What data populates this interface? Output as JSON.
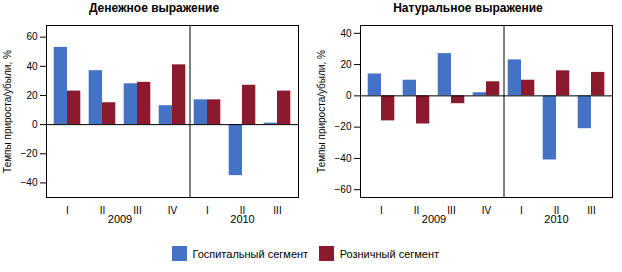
{
  "chart_data": [
    {
      "type": "bar",
      "title": "Денежное выражение",
      "ylabel": "Темпы прироста/убыли, %",
      "categories": [
        "I",
        "II",
        "III",
        "IV",
        "I",
        "II",
        "III"
      ],
      "series": [
        {
          "name": "Госпитальный сегмент",
          "color": "#4472C4",
          "values": [
            53,
            37,
            28,
            13,
            17,
            -35,
            1
          ]
        },
        {
          "name": "Розничный сегмент",
          "color": "#8B1A2E",
          "values": [
            23,
            15,
            29,
            41,
            17,
            27,
            23
          ]
        }
      ],
      "annotations": [
        {
          "text": "2009",
          "categories": 4
        },
        {
          "text": "2010",
          "categories": 3
        }
      ],
      "ylim": [
        -50,
        68
      ],
      "yticks": [
        -40,
        -20,
        0,
        20,
        40,
        60
      ],
      "grid": false,
      "legend": "bottom"
    },
    {
      "type": "bar",
      "title": "Натуральное выражение",
      "ylabel": "Темпы прироста/убыли, %",
      "categories": [
        "I",
        "II",
        "III",
        "IV",
        "I",
        "II",
        "III"
      ],
      "series": [
        {
          "name": "Госпитальный сегмент",
          "color": "#4472C4",
          "values": [
            14,
            10,
            27,
            2,
            23,
            -41,
            -21
          ]
        },
        {
          "name": "Розничный сегмент",
          "color": "#8B1A2E",
          "values": [
            -16,
            -18,
            -5,
            9,
            10,
            16,
            15
          ]
        }
      ],
      "annotations": [
        {
          "text": "2009",
          "categories": 4
        },
        {
          "text": "2010",
          "categories": 3
        }
      ],
      "ylim": [
        -65,
        45
      ],
      "yticks": [
        -60,
        -40,
        -20,
        0,
        20,
        40
      ],
      "grid": false,
      "legend": "bottom"
    }
  ]
}
